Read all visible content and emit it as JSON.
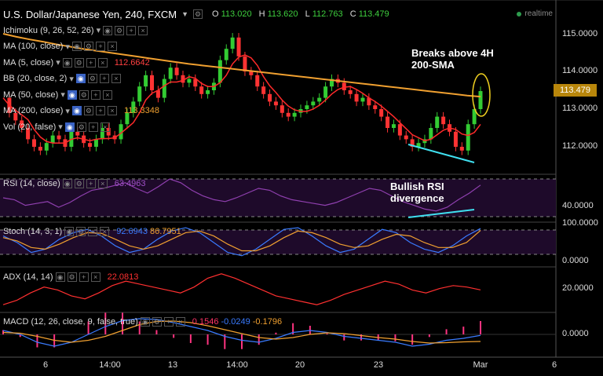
{
  "header": {
    "title": "U.S. Dollar/Japanese Yen, 240, FXCM",
    "open_label": "O",
    "open": "113.020",
    "high_label": "H",
    "high": "113.620",
    "low_label": "L",
    "low": "112.763",
    "close_label": "C",
    "close": "113.479",
    "realtime": "realtime"
  },
  "indicators_main": [
    {
      "label": "Ichimoku (9, 26, 52, 26)",
      "value": "",
      "color": "#ddd"
    },
    {
      "label": "MA (100, close)",
      "value": "",
      "color": "#ddd"
    },
    {
      "label": "MA (5, close)",
      "value": "112.6642",
      "color": "#ff4040"
    },
    {
      "label": "BB (20, close, 2)",
      "value": "",
      "color": "#ddd"
    },
    {
      "label": "MA (50, close)",
      "value": "",
      "color": "#ddd"
    },
    {
      "label": "MA (200, close)",
      "value": "113.3348",
      "color": "#f0a030"
    },
    {
      "label": "Vol (20, false)",
      "value": "",
      "color": "#ddd"
    }
  ],
  "annotations": {
    "breakout": "Breaks above 4H\n200-SMA",
    "divergence": "Bullish RSI\ndivergence"
  },
  "panes": {
    "rsi": {
      "label": "RSI (14, close)",
      "value": "63.4963",
      "value_color": "#a050c8"
    },
    "stoch": {
      "label": "Stoch (14, 3, 1)",
      "value1": "92.6943",
      "value1_color": "#3a7bff",
      "value2": "86.7951",
      "value2_color": "#f0a030"
    },
    "adx": {
      "label": "ADX (14, 14)",
      "value": "22.0813",
      "value_color": "#ff3030"
    },
    "macd": {
      "label": "MACD (12, 26, close, 9, false, true)",
      "v1": "0.1546",
      "v1_color": "#ff3366",
      "v2": "-0.0249",
      "v2_color": "#3a7bff",
      "v3": "-0.1796",
      "v3_color": "#f0a030"
    }
  },
  "price_axis": [
    "115.0000",
    "114.0000",
    "113.0000",
    "112.0000"
  ],
  "current_price": "113.479",
  "rsi_axis": [
    "40.0000"
  ],
  "stoch_axis": [
    "100.0000",
    "0.0000"
  ],
  "adx_axis": [
    "20.0000"
  ],
  "macd_axis": [
    "0.0000"
  ],
  "time_axis": [
    "6",
    "14:00",
    "13",
    "14:00",
    "20",
    "23",
    "Mar",
    "6"
  ],
  "colors": {
    "up": "#33cc33",
    "down": "#ff3333",
    "sma200": "#f0a030",
    "ma5": "#ff2a2a",
    "trend": "#40e0f0",
    "ellipse": "#f0d020",
    "rsi": "#9040b0",
    "rsi_band": "#1e0a2a",
    "stoch_k": "#3a7bff",
    "stoch_d": "#f0a030",
    "adx": "#ff3030",
    "macd": "#3a7bff",
    "signal": "#f0a030",
    "hist": "#ff3380"
  },
  "chart_data": {
    "type": "line",
    "title": "U.S. Dollar/Japanese Yen, 240, FXCM",
    "x_ticks": [
      "6",
      "14:00",
      "13",
      "14:00",
      "20",
      "23",
      "Mar",
      "6"
    ],
    "price_close": [
      113.3,
      112.9,
      112.7,
      112.5,
      112.2,
      112.0,
      111.9,
      112.1,
      112.3,
      112.2,
      112.0,
      112.4,
      112.3,
      112.1,
      112.0,
      112.2,
      112.5,
      112.3,
      112.2,
      112.6,
      112.9,
      113.2,
      113.6,
      113.9,
      113.5,
      113.3,
      113.8,
      114.1,
      113.9,
      113.7,
      113.8,
      113.6,
      113.4,
      113.5,
      113.7,
      114.3,
      114.6,
      114.9,
      114.4,
      114.0,
      113.9,
      113.6,
      113.4,
      113.2,
      113.1,
      112.9,
      112.8,
      112.9,
      113.0,
      113.1,
      113.2,
      113.3,
      113.6,
      113.8,
      113.7,
      113.5,
      113.4,
      113.2,
      113.3,
      113.1,
      113.0,
      112.8,
      112.5,
      112.6,
      112.3,
      112.2,
      112.0,
      112.1,
      112.2,
      112.5,
      112.8,
      112.6,
      112.4,
      112.0,
      111.9,
      112.6,
      113.0,
      113.479
    ],
    "sma200": [
      115.0,
      114.92,
      114.85,
      114.79,
      114.72,
      114.66,
      114.6,
      114.55,
      114.5,
      114.45,
      114.4,
      114.35,
      114.3,
      114.25,
      114.2,
      114.16,
      114.12,
      114.08,
      114.04,
      114.0,
      113.96,
      113.92,
      113.88,
      113.84,
      113.8,
      113.76,
      113.72,
      113.68,
      113.64,
      113.6,
      113.56,
      113.52,
      113.48,
      113.44,
      113.4,
      113.36,
      113.33
    ],
    "rsi": [
      50,
      48,
      42,
      44,
      46,
      40,
      45,
      52,
      58,
      60,
      63,
      66,
      60,
      55,
      62,
      70,
      66,
      58,
      52,
      48,
      46,
      50,
      55,
      60,
      58,
      52,
      48,
      46,
      44,
      42,
      45,
      50,
      55,
      60,
      58,
      52,
      46,
      42,
      38,
      36,
      40,
      48,
      55,
      63.4963
    ],
    "rsi_levels": [
      70,
      30
    ],
    "stoch_k": [
      70,
      50,
      20,
      30,
      60,
      80,
      90,
      70,
      40,
      20,
      30,
      60,
      85,
      95,
      80,
      50,
      20,
      10,
      30,
      60,
      90,
      95,
      70,
      40,
      20,
      30,
      60,
      90,
      80,
      50,
      30,
      20,
      40,
      70,
      92.6943
    ],
    "stoch_d": [
      65,
      55,
      35,
      30,
      45,
      65,
      80,
      78,
      60,
      40,
      30,
      40,
      60,
      80,
      85,
      70,
      45,
      25,
      25,
      40,
      65,
      85,
      80,
      65,
      45,
      35,
      40,
      60,
      75,
      70,
      50,
      35,
      35,
      50,
      86.7951
    ],
    "stoch_levels": [
      80,
      20
    ],
    "adx": [
      12,
      15,
      20,
      24,
      22,
      18,
      16,
      20,
      25,
      28,
      26,
      24,
      22,
      20,
      24,
      30,
      33,
      30,
      26,
      22,
      18,
      16,
      14,
      12,
      15,
      19,
      22,
      25,
      28,
      26,
      22,
      20,
      23,
      25,
      24,
      22.0813
    ],
    "macd": [
      0.1,
      0.0,
      -0.2,
      -0.3,
      -0.2,
      0.0,
      0.2,
      0.35,
      0.4,
      0.38,
      0.3,
      0.2,
      0.1,
      -0.05,
      -0.15,
      -0.2,
      -0.1,
      0.05,
      0.1,
      0.05,
      -0.05,
      -0.1,
      -0.15,
      -0.2,
      -0.3,
      -0.25,
      -0.15,
      -0.1,
      -0.0249
    ],
    "signal": [
      0.05,
      0.03,
      -0.05,
      -0.15,
      -0.2,
      -0.15,
      -0.05,
      0.1,
      0.25,
      0.33,
      0.34,
      0.3,
      0.22,
      0.12,
      0.02,
      -0.08,
      -0.12,
      -0.08,
      0.0,
      0.04,
      0.02,
      -0.03,
      -0.08,
      -0.12,
      -0.18,
      -0.22,
      -0.21,
      -0.19,
      -0.1796
    ]
  }
}
